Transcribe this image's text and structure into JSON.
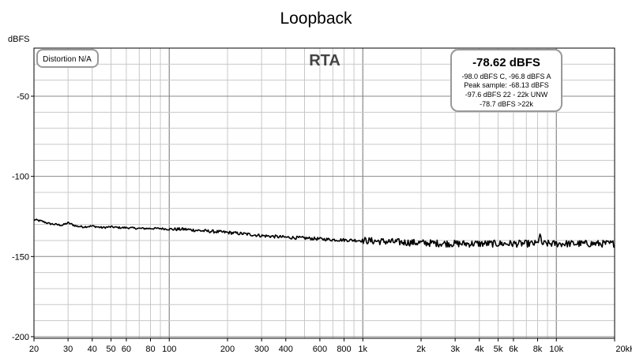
{
  "chart_data": {
    "type": "line",
    "title": "Loopback",
    "ylabel": "dBFS",
    "xlabel": "",
    "xscale": "log",
    "xlim": [
      20,
      20000
    ],
    "ylim": [
      -201,
      -20
    ],
    "grid": true,
    "yticks": [
      {
        "value": -50,
        "label": "-50"
      },
      {
        "value": -100,
        "label": "-100"
      },
      {
        "value": -150,
        "label": "-150"
      },
      {
        "value": -200,
        "label": "-200"
      }
    ],
    "xticks": [
      {
        "value": 20,
        "label": "20"
      },
      {
        "value": 30,
        "label": "30"
      },
      {
        "value": 40,
        "label": "40"
      },
      {
        "value": 50,
        "label": "50"
      },
      {
        "value": 60,
        "label": "60"
      },
      {
        "value": 80,
        "label": "80"
      },
      {
        "value": 100,
        "label": "100"
      },
      {
        "value": 200,
        "label": "200"
      },
      {
        "value": 300,
        "label": "300"
      },
      {
        "value": 400,
        "label": "400"
      },
      {
        "value": 600,
        "label": "600"
      },
      {
        "value": 800,
        "label": "800"
      },
      {
        "value": 1000,
        "label": "1k"
      },
      {
        "value": 2000,
        "label": "2k"
      },
      {
        "value": 3000,
        "label": "3k"
      },
      {
        "value": 4000,
        "label": "4k"
      },
      {
        "value": 5000,
        "label": "5k"
      },
      {
        "value": 6000,
        "label": "6k"
      },
      {
        "value": 8000,
        "label": "8k"
      },
      {
        "value": 10000,
        "label": "10k"
      },
      {
        "value": 20000,
        "label": "20kHz"
      }
    ],
    "annotations": {
      "mode": "RTA",
      "distortion": "Distortion N/A",
      "level_main": "-78.62 dBFS",
      "level_lines": [
        "-98.0 dBFS C, -96.8 dBFS A",
        "Peak sample: -68.13 dBFS",
        "-97.6 dBFS 22 - 22k UNW",
        "-78.7 dBFS >22k"
      ]
    },
    "series": [
      {
        "x": [
          20,
          22,
          24,
          26,
          28,
          30,
          33,
          36,
          40,
          45,
          50,
          55,
          60,
          70,
          80,
          90,
          100,
          120,
          150,
          200,
          250,
          300,
          400,
          500,
          700,
          1000,
          1500,
          2000,
          3000,
          4000,
          5000,
          6000,
          8000,
          8200,
          8400,
          10000,
          12000,
          15000,
          20000
        ],
        "y": [
          -127,
          -128,
          -129.5,
          -130,
          -130.5,
          -129,
          -131,
          -131.5,
          -131,
          -132,
          -131.5,
          -132,
          -132,
          -132.5,
          -132.5,
          -132.5,
          -133,
          -133,
          -134,
          -135,
          -136,
          -137,
          -138,
          -138.5,
          -139.5,
          -140,
          -141,
          -141.5,
          -142,
          -142,
          -142,
          -142,
          -142,
          -136,
          -142,
          -142,
          -142,
          -142,
          -142
        ]
      }
    ],
    "colors": {
      "line": "#000000",
      "grid_minor": "#c8c8c8",
      "grid_major": "#888888",
      "frame": "#000000",
      "box_border": "#999999"
    }
  }
}
